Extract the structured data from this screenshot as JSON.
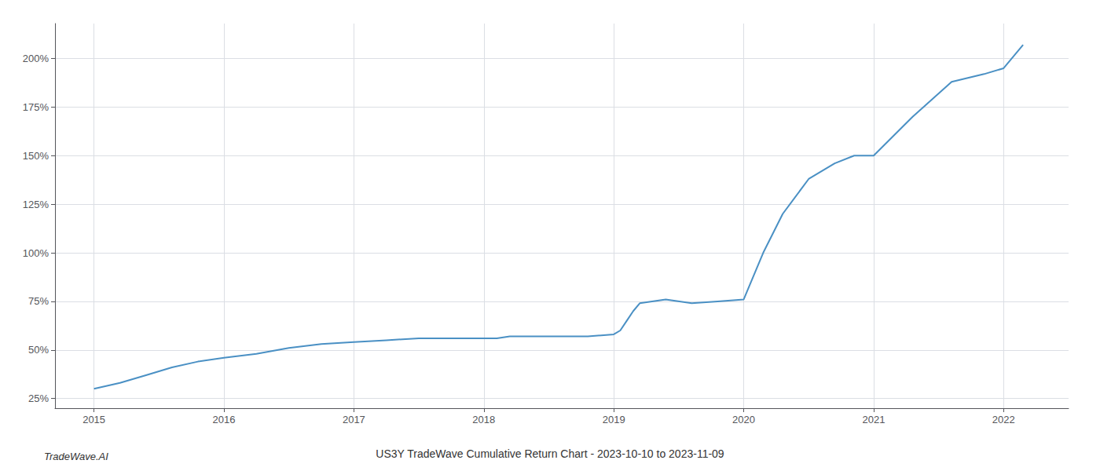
{
  "chart_data": {
    "type": "line",
    "title": "US3Y TradeWave Cumulative Return Chart - 2023-10-10 to 2023-11-09",
    "annotations": [
      "TradeWave.AI"
    ],
    "x": [
      2015.0,
      2015.2,
      2015.4,
      2015.6,
      2015.8,
      2016.0,
      2016.25,
      2016.5,
      2016.75,
      2017.0,
      2017.25,
      2017.5,
      2017.75,
      2018.0,
      2018.1,
      2018.2,
      2018.4,
      2018.6,
      2018.8,
      2019.0,
      2019.05,
      2019.1,
      2019.15,
      2019.2,
      2019.4,
      2019.6,
      2019.8,
      2020.0,
      2020.15,
      2020.3,
      2020.5,
      2020.7,
      2020.85,
      2021.0,
      2021.3,
      2021.6,
      2021.85,
      2022.0,
      2022.15
    ],
    "values": [
      30,
      33,
      37,
      41,
      44,
      46,
      48,
      51,
      53,
      54,
      55,
      56,
      56,
      56,
      56,
      57,
      57,
      57,
      57,
      58,
      60,
      65,
      70,
      74,
      76,
      74,
      75,
      76,
      100,
      120,
      138,
      146,
      150,
      150,
      170,
      188,
      192,
      195,
      207
    ],
    "color": "#4a90c4",
    "xlim": [
      2014.7,
      2022.5
    ],
    "ylim": [
      20,
      218
    ],
    "xticks": [
      2015,
      2016,
      2017,
      2018,
      2019,
      2020,
      2021,
      2022
    ],
    "yticks": [
      {
        "value": 25,
        "label": "25%"
      },
      {
        "value": 50,
        "label": "50%"
      },
      {
        "value": 75,
        "label": "75%"
      },
      {
        "value": 100,
        "label": "100%"
      },
      {
        "value": 125,
        "label": "125%"
      },
      {
        "value": 150,
        "label": "150%"
      },
      {
        "value": 175,
        "label": "175%"
      },
      {
        "value": 200,
        "label": "200%"
      }
    ],
    "grid": true
  }
}
